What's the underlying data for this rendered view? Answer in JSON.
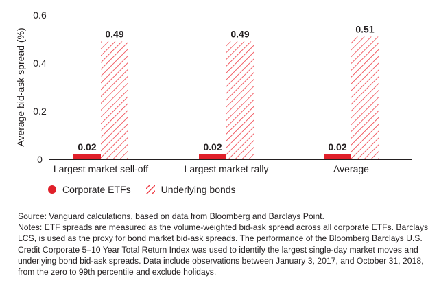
{
  "chart_data": {
    "type": "bar",
    "categories": [
      "Largest market sell-off",
      "Largest market rally",
      "Average"
    ],
    "series": [
      {
        "name": "Corporate ETFs",
        "values": [
          0.02,
          0.02,
          0.02
        ],
        "color": "#e0202a",
        "pattern": "solid"
      },
      {
        "name": "Underlying bonds",
        "values": [
          0.49,
          0.49,
          0.51
        ],
        "color": "#ee3b44",
        "pattern": "hatched"
      }
    ],
    "data_labels": [
      [
        "0.02",
        "0.02",
        "0.02"
      ],
      [
        "0.49",
        "0.49",
        "0.51"
      ]
    ],
    "ylabel": "Average bid-ask spread (%)",
    "xlabel": "",
    "ylim": [
      0,
      0.6
    ],
    "yticks": [
      0,
      0.2,
      0.4,
      0.6
    ],
    "ytick_labels": [
      "0",
      "0.2",
      "0.4",
      "0.6"
    ],
    "grid": false,
    "legend_position": "bottom-left"
  },
  "legend": {
    "etf_label": "Corporate ETFs",
    "bonds_label": "Underlying bonds"
  },
  "notes": {
    "source": "Source: Vanguard calculations, based on data from Bloomberg and Barclays Point.",
    "notes": "Notes: ETF spreads are measured as the volume-weighted bid-ask spread across all corporate ETFs. Barclays LCS, is used as the proxy for bond market bid-ask spreads. The performance of the Bloomberg Barclays U.S. Credit Corporate 5–10 Year Total Return Index was used to identify the largest single-day market moves and underlying bond bid-ask spreads. Data include observations between January 3, 2017, and October 31, 2018, from the zero to 99th percentile and exclude holidays."
  }
}
